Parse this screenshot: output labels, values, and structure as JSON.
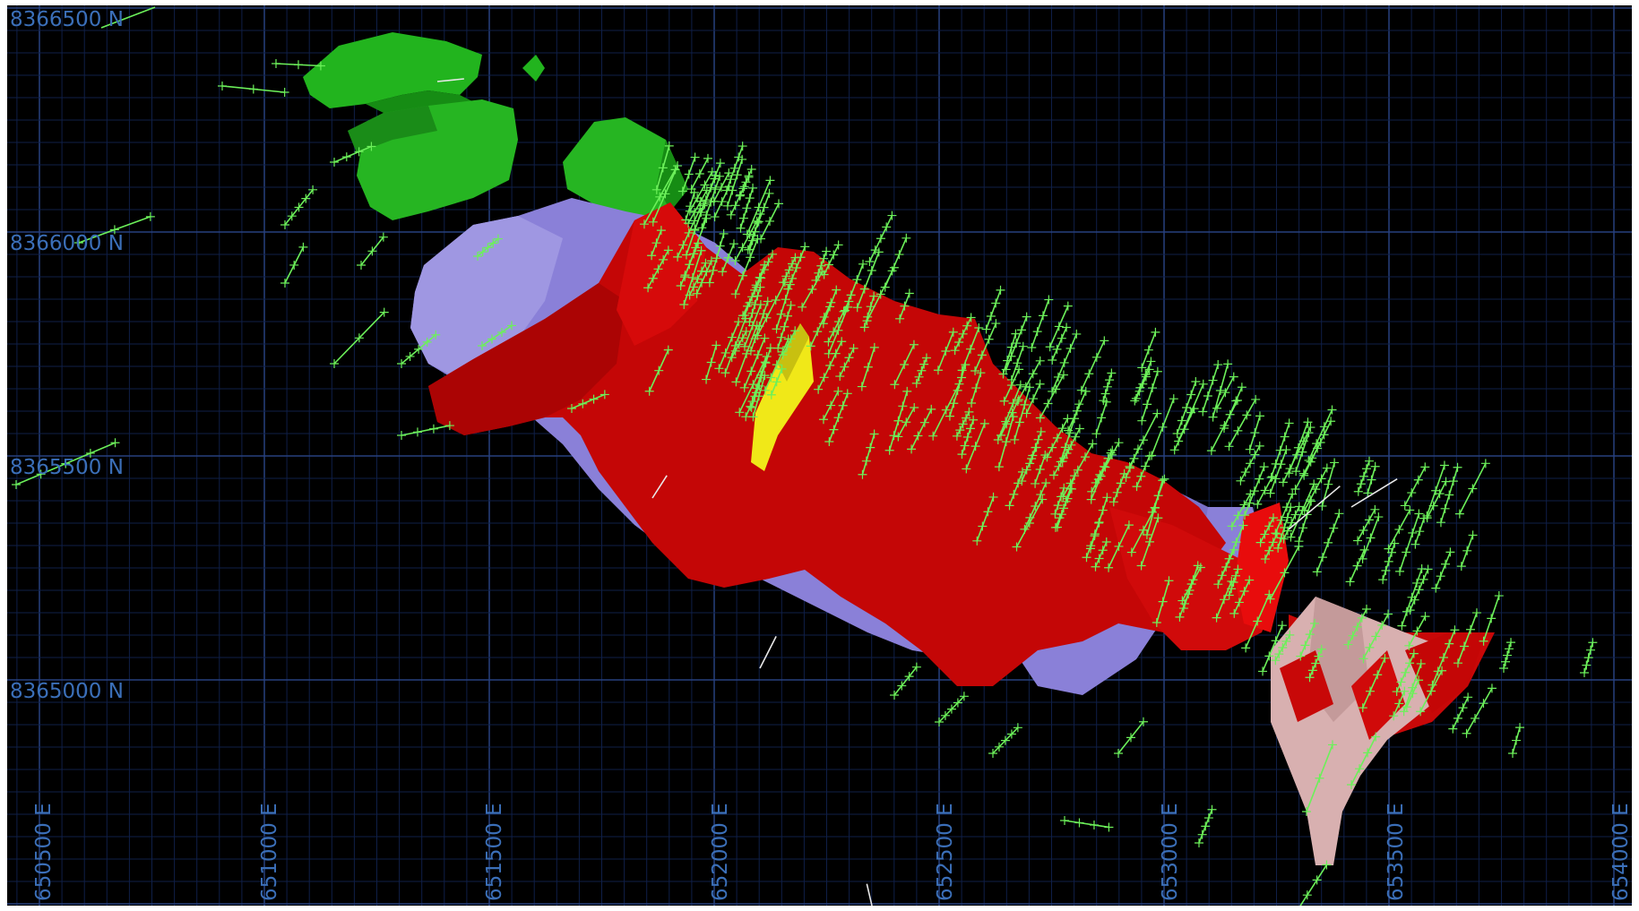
{
  "map": {
    "northing_labels": [
      "8366500 N",
      "8366000 N",
      "8365500 N",
      "8365000 N"
    ],
    "easting_labels": [
      "650500 E",
      "651000 E",
      "651500 E",
      "652000 E",
      "652500 E",
      "653000 E",
      "653500 E",
      "654000 E"
    ],
    "colors": {
      "background": "#000000",
      "grid_minor": "#0f1f48",
      "grid_major": "#27407e",
      "label": "#3b6fb8",
      "green_body": "#22b41e",
      "purple_body": "#8a80d8",
      "red_body": "#c80808",
      "yellow_body": "#f0e818",
      "pink_body": "#d8b0b0",
      "drill_trace": "#6cf05a",
      "white_trace": "#e8e8e8"
    },
    "layers": [
      {
        "name": "green-solid"
      },
      {
        "name": "purple-solid"
      },
      {
        "name": "red-solid"
      },
      {
        "name": "yellow-solid"
      },
      {
        "name": "pink-solid"
      },
      {
        "name": "drillhole-traces"
      }
    ]
  }
}
